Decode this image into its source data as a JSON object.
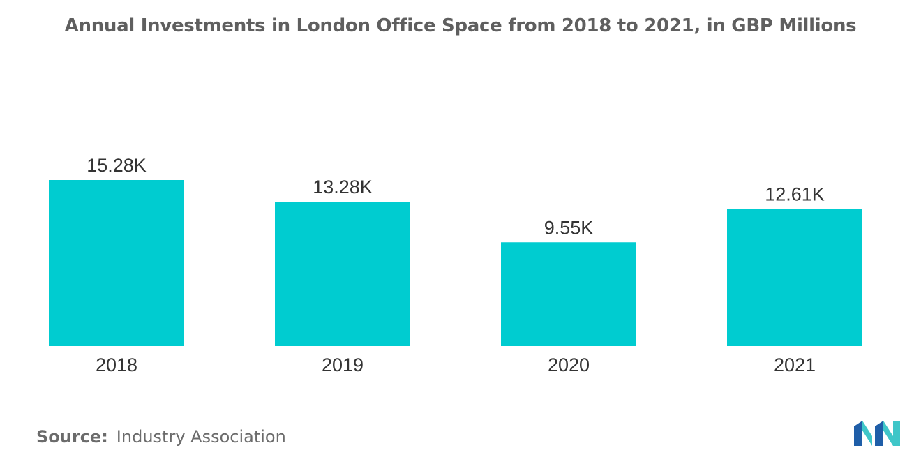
{
  "chart_data": {
    "type": "bar",
    "title": "Annual Investments in London Office Space from 2018 to 2021, in GBP Millions",
    "categories": [
      "2018",
      "2019",
      "2020",
      "2021"
    ],
    "values": [
      15280,
      13280,
      9550,
      12610
    ],
    "data_labels": [
      "15.28K",
      "13.28K",
      "9.55K",
      "12.61K"
    ],
    "xlabel": "",
    "ylabel": "",
    "ylim": [
      0,
      15280
    ],
    "grid": false,
    "legend": "none",
    "bar_color": "#00ccd0"
  },
  "source": {
    "key": "Source:",
    "value": "Industry Association"
  },
  "logo": {
    "icon": "mordor-intelligence-logo-icon",
    "colors": [
      "#1f5ea8",
      "#3fc6c8"
    ]
  }
}
